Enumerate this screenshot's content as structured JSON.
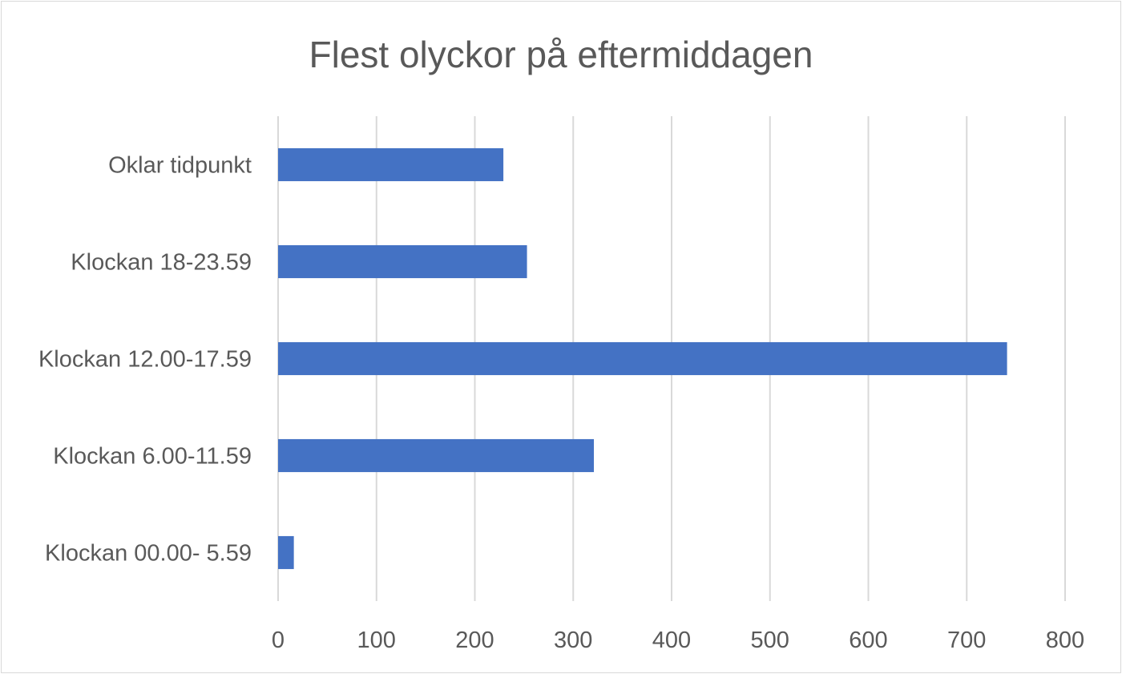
{
  "chart_data": {
    "type": "bar",
    "orientation": "horizontal",
    "title": "Flest olyckor på eftermiddagen",
    "xlabel": "",
    "ylabel": "",
    "categories": [
      "Oklar tidpunkt",
      "Klockan 18-23.59",
      "Klockan 12.00-17.59",
      "Klockan 6.00-11.59",
      "Klockan 00.00- 5.59"
    ],
    "values": [
      229,
      253,
      741,
      321,
      16
    ],
    "xlim": [
      0,
      800
    ],
    "xticks": [
      "0",
      "100",
      "200",
      "300",
      "400",
      "500",
      "600",
      "700",
      "800"
    ],
    "grid": true,
    "legend": "none",
    "bar_color": "#4472c4"
  }
}
